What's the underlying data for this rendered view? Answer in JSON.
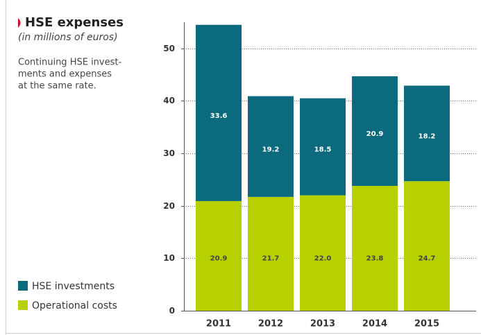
{
  "chart_data": {
    "type": "stacked_bar",
    "title": "HSE expenses",
    "subtitle": "(in millions of euros)",
    "description": [
      "Continuing HSE invest-",
      "ments and expenses",
      "at the same rate."
    ],
    "categories": [
      "2011",
      "2012",
      "2013",
      "2014",
      "2015"
    ],
    "series": [
      {
        "name": "HSE investments",
        "color": "#0b6a7d",
        "values": [
          33.6,
          19.2,
          18.5,
          20.9,
          18.2
        ]
      },
      {
        "name": "Operational costs",
        "color": "#b7d000",
        "values": [
          20.9,
          21.7,
          22.0,
          23.8,
          24.7
        ],
        "value_labels": [
          "20.9",
          "21.7",
          "22.0",
          "23.8",
          "24.7"
        ]
      }
    ],
    "ylim": [
      0,
      55
    ],
    "yticks": [
      0,
      10,
      20,
      30,
      40,
      50
    ],
    "grid": true
  }
}
